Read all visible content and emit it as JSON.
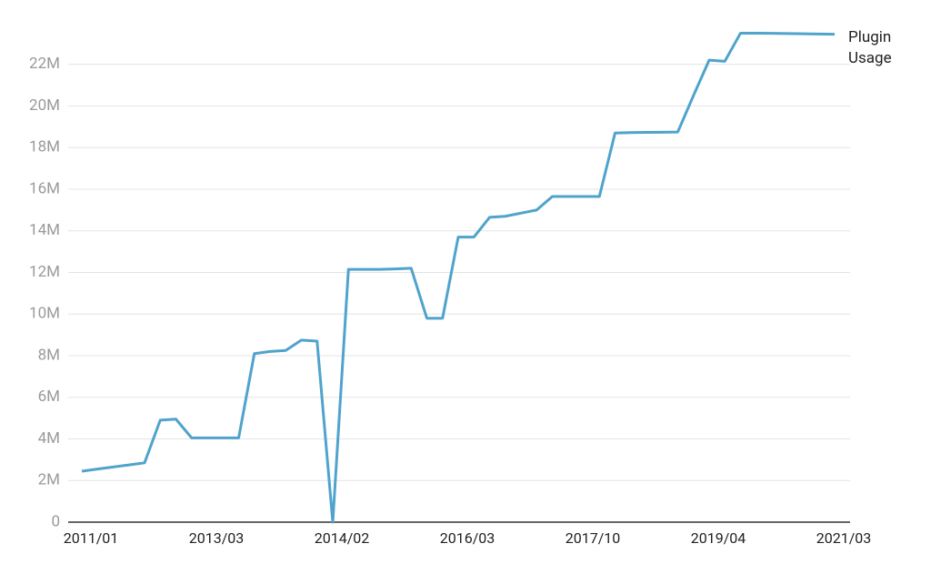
{
  "chart_data": {
    "type": "line",
    "categories": [
      "2011/01",
      null,
      null,
      null,
      null,
      null,
      null,
      null,
      "2013/03",
      null,
      null,
      null,
      null,
      null,
      null,
      null,
      "2014/02",
      null,
      null,
      null,
      null,
      null,
      null,
      null,
      "2016/03",
      null,
      null,
      null,
      null,
      null,
      null,
      null,
      "2017/10",
      null,
      null,
      null,
      null,
      null,
      null,
      null,
      "2019/04",
      null,
      null,
      null,
      null,
      null,
      null,
      null,
      "2021/03"
    ],
    "series": [
      {
        "name": "Plugin Usage",
        "color": "#4fa3cc",
        "values": [
          2450000,
          2550000,
          2650000,
          2750000,
          2850000,
          4900000,
          4950000,
          4050000,
          4050000,
          4050000,
          4050000,
          8100000,
          8200000,
          8250000,
          8750000,
          8700000,
          0,
          12150000,
          12150000,
          12150000,
          12170000,
          12200000,
          9800000,
          9800000,
          13700000,
          13700000,
          14650000,
          14700000,
          14850000,
          15000000,
          15650000,
          15650000,
          15650000,
          15650000,
          18700000,
          18720000,
          18730000,
          18740000,
          18750000,
          20500000,
          22200000,
          22150000,
          23500000,
          23500000,
          23490000,
          23480000,
          23470000,
          23460000,
          23450000
        ]
      }
    ],
    "ylim": [
      0,
      24000000
    ],
    "yticks": [
      0,
      {
        "value": 2000000,
        "label": "2M"
      },
      {
        "value": 4000000,
        "label": "4M"
      },
      {
        "value": 6000000,
        "label": "6M"
      },
      {
        "value": 8000000,
        "label": "8M"
      },
      {
        "value": 10000000,
        "label": "10M"
      },
      {
        "value": 12000000,
        "label": "12M"
      },
      {
        "value": 14000000,
        "label": "14M"
      },
      {
        "value": 16000000,
        "label": "16M"
      },
      {
        "value": 18000000,
        "label": "18M"
      },
      {
        "value": 20000000,
        "label": "20M"
      },
      {
        "value": 22000000,
        "label": "22M"
      }
    ],
    "grid": true
  }
}
